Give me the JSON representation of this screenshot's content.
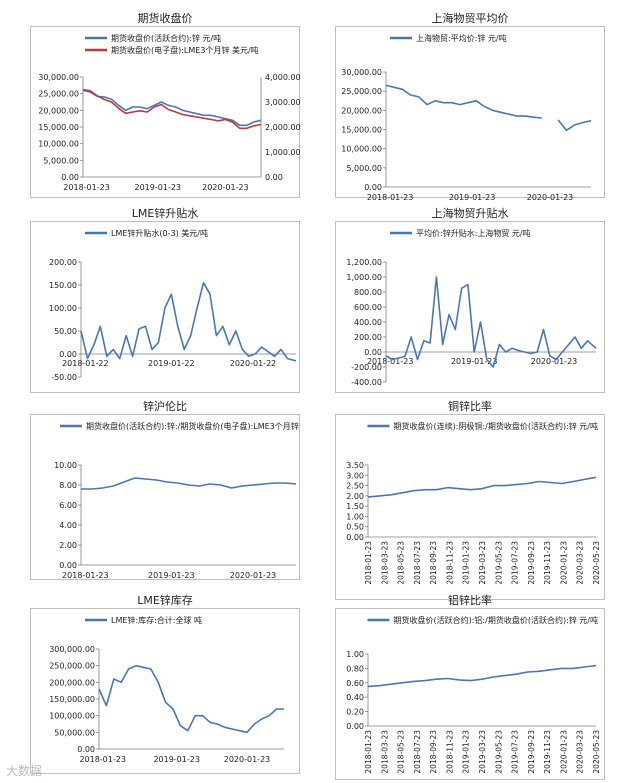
{
  "watermark": "大数据",
  "charts": [
    {
      "id": "c1",
      "title": "期货收盘价",
      "type": "line",
      "legend": [
        "期货收盘价(活跃合约):锌  元/吨",
        "期货收盘价(电子盘):LME3个月锌  美元/吨"
      ],
      "series_colors": [
        "#4a77b4",
        "#c0393b"
      ],
      "yticks": [
        "30,000.00",
        "25,000.00",
        "20,000.00",
        "15,000.00",
        "10,000.00",
        "5,000.00",
        "0.00"
      ],
      "yticks_right": [
        "4,000.00",
        "3,000.00",
        "2,000.00",
        "1,000.00",
        "0.00"
      ],
      "xticks": [
        "2018-01-23",
        "2019-01-23",
        "2020-01-23"
      ],
      "ylim": [
        0,
        30000
      ],
      "ylim_right": [
        0,
        4000
      ]
    },
    {
      "id": "c2",
      "title": "上海物贸平均价",
      "type": "line",
      "legend": [
        "上海物贸:平均价:锌  元/吨"
      ],
      "series_colors": [
        "#4a77b4"
      ],
      "yticks": [
        "30,000.00",
        "25,000.00",
        "20,000.00",
        "15,000.00",
        "10,000.00",
        "5,000.00",
        "0.00"
      ],
      "xticks": [
        "2018-01-23",
        "2019-01-23",
        "2020-01-23"
      ],
      "ylim": [
        0,
        30000
      ]
    },
    {
      "id": "c3",
      "title": "LME锌升贴水",
      "type": "line",
      "legend": [
        "LME锌升贴水(0-3)  美元/吨"
      ],
      "series_colors": [
        "#4a77b4"
      ],
      "yticks": [
        "200.00",
        "150.00",
        "100.00",
        "50.00",
        "0.00",
        "-50.00"
      ],
      "xticks": [
        "2018-01-22",
        "2019-01-22",
        "2020-01-22"
      ],
      "ylim": [
        -50,
        200
      ]
    },
    {
      "id": "c4",
      "title": "上海物贸升贴水",
      "type": "line",
      "legend": [
        "平均价:锌升贴水:上海物贸  元/吨"
      ],
      "series_colors": [
        "#4a77b4"
      ],
      "yticks": [
        "1,200.00",
        "1,000.00",
        "800.00",
        "600.00",
        "400.00",
        "200.00",
        "0.00",
        "-200.00",
        "-400.00"
      ],
      "xticks": [
        "2018-01-23",
        "2019-01-23",
        "2020-01-23"
      ],
      "ylim": [
        -400,
        1200
      ]
    },
    {
      "id": "c5",
      "title": "锌沪伦比",
      "type": "line",
      "legend": [
        "期货收盘价(活跃合约):锌:/期货收盘价(电子盘):LME3个月锌"
      ],
      "series_colors": [
        "#4a77b4"
      ],
      "yticks": [
        "10.00",
        "8.00",
        "6.00",
        "4.00",
        "2.00",
        "0.00"
      ],
      "xticks": [
        "2018-01-23",
        "2019-01-23",
        "2020-01-23"
      ],
      "ylim": [
        0,
        10
      ]
    },
    {
      "id": "c6",
      "title": "铜锌比率",
      "type": "line",
      "legend": [
        "期货收盘价(连续):阴极铜:/期货收盘价(活跃合约):锌  元/吨"
      ],
      "series_colors": [
        "#4a77b4"
      ],
      "yticks": [
        "3.50",
        "3.00",
        "2.50",
        "2.00",
        "1.50",
        "1.00",
        "0.50",
        "0.00"
      ],
      "xticks": [
        "2018-01-23",
        "2018-03-23",
        "2018-05-23",
        "2018-07-23",
        "2018-09-23",
        "2018-11-23",
        "2019-01-23",
        "2019-03-23",
        "2019-05-23",
        "2019-07-23",
        "2019-09-23",
        "2019-11-23",
        "2020-01-23",
        "2020-03-23",
        "2020-05-23"
      ],
      "ylim": [
        0,
        3.5
      ]
    },
    {
      "id": "c7",
      "title": "LME锌库存",
      "type": "line",
      "legend": [
        "LME锌:库存:合计:全球  吨"
      ],
      "series_colors": [
        "#4a77b4"
      ],
      "yticks": [
        "300,000.00",
        "250,000.00",
        "200,000.00",
        "150,000.00",
        "100,000.00",
        "50,000.00",
        "0.00"
      ],
      "xticks": [
        "2018-01-23",
        "2019-01-23",
        "2020-01-23"
      ],
      "ylim": [
        0,
        300000
      ]
    },
    {
      "id": "c8",
      "title": "铝锌比率",
      "type": "line",
      "legend": [
        "期货收盘价(活跃合约):铝:/期货收盘价(活跃合约):锌  元/吨"
      ],
      "series_colors": [
        "#4a77b4"
      ],
      "yticks": [
        "1.00",
        "0.80",
        "0.60",
        "0.40",
        "0.20",
        "0.00"
      ],
      "xticks": [
        "2018-01-23",
        "2018-03-23",
        "2018-05-23",
        "2018-07-23",
        "2018-09-23",
        "2018-11-23",
        "2019-01-23",
        "2019-03-23",
        "2019-05-23",
        "2019-07-23",
        "2019-09-23",
        "2019-11-23",
        "2020-01-23",
        "2020-03-23",
        "2020-05-23"
      ],
      "ylim": [
        0,
        1
      ]
    }
  ],
  "chart_data": [
    {
      "type": "line",
      "title": "期货收盘价",
      "xlabel": "",
      "ylabel": "",
      "series": [
        {
          "name": "期货收盘价(活跃合约):锌  元/吨",
          "axis": "left",
          "x": [
            0,
            0.04,
            0.08,
            0.12,
            0.16,
            0.2,
            0.24,
            0.28,
            0.32,
            0.36,
            0.4,
            0.44,
            0.48,
            0.52,
            0.56,
            0.6,
            0.64,
            0.68,
            0.72,
            0.76,
            0.8,
            0.84,
            0.88,
            0.92,
            0.96,
            1.0
          ],
          "values": [
            26000,
            25500,
            24200,
            24000,
            23300,
            21500,
            20000,
            21000,
            21000,
            20500,
            21500,
            22500,
            21500,
            21000,
            20000,
            19500,
            19000,
            18500,
            18500,
            18000,
            17500,
            17000,
            15500,
            15500,
            16500,
            17000
          ]
        },
        {
          "name": "期货收盘价(电子盘):LME3个月锌  美元/吨",
          "axis": "right",
          "x": [
            0,
            0.04,
            0.08,
            0.12,
            0.16,
            0.2,
            0.24,
            0.28,
            0.32,
            0.36,
            0.4,
            0.44,
            0.48,
            0.52,
            0.56,
            0.6,
            0.64,
            0.68,
            0.72,
            0.76,
            0.8,
            0.84,
            0.88,
            0.92,
            0.96,
            1.0
          ],
          "values": [
            3500,
            3450,
            3250,
            3100,
            3000,
            2750,
            2550,
            2600,
            2650,
            2600,
            2800,
            2900,
            2700,
            2600,
            2500,
            2450,
            2400,
            2350,
            2300,
            2250,
            2300,
            2200,
            1950,
            1950,
            2050,
            2100
          ]
        }
      ]
    },
    {
      "type": "line",
      "title": "上海物贸平均价",
      "series": [
        {
          "name": "上海物贸:平均价:锌  元/吨",
          "x": [
            0,
            0.04,
            0.08,
            0.12,
            0.16,
            0.2,
            0.24,
            0.28,
            0.32,
            0.36,
            0.4,
            0.44,
            0.48,
            0.52,
            0.56,
            0.6,
            0.64,
            0.68,
            0.72,
            0.76,
            0.8,
            0.84,
            0.88,
            0.92,
            0.96,
            1.0
          ],
          "values": [
            26500,
            26000,
            25500,
            24000,
            23500,
            21500,
            22500,
            22000,
            22000,
            21500,
            22000,
            22500,
            21000,
            20000,
            19500,
            19000,
            18500,
            18500,
            18200,
            18000,
            null,
            17500,
            14800,
            16200,
            16800,
            17300
          ]
        }
      ]
    },
    {
      "type": "line",
      "title": "LME锌升贴水",
      "series": [
        {
          "name": "LME锌升贴水(0-3)  美元/吨",
          "x": [
            0,
            0.03,
            0.06,
            0.09,
            0.12,
            0.15,
            0.18,
            0.21,
            0.24,
            0.27,
            0.3,
            0.33,
            0.36,
            0.39,
            0.42,
            0.45,
            0.48,
            0.51,
            0.54,
            0.57,
            0.6,
            0.63,
            0.66,
            0.69,
            0.72,
            0.75,
            0.78,
            0.81,
            0.84,
            0.87,
            0.9,
            0.93,
            0.96,
            1.0
          ],
          "values": [
            50,
            -10,
            20,
            60,
            -5,
            10,
            -10,
            40,
            -5,
            55,
            60,
            10,
            25,
            100,
            130,
            60,
            10,
            40,
            100,
            155,
            130,
            40,
            60,
            20,
            50,
            10,
            -5,
            0,
            15,
            5,
            -5,
            10,
            -10,
            -15
          ]
        }
      ]
    },
    {
      "type": "line",
      "title": "上海物贸升贴水",
      "series": [
        {
          "name": "平均价:锌升贴水:上海物贸  元/吨",
          "x": [
            0,
            0.03,
            0.06,
            0.09,
            0.12,
            0.15,
            0.18,
            0.21,
            0.24,
            0.27,
            0.3,
            0.33,
            0.36,
            0.39,
            0.42,
            0.45,
            0.48,
            0.51,
            0.54,
            0.57,
            0.6,
            0.63,
            0.66,
            0.69,
            0.72,
            0.75,
            0.78,
            0.81,
            0.84,
            0.87,
            0.9,
            0.93,
            0.96,
            1.0
          ],
          "values": [
            -50,
            -100,
            -80,
            -60,
            200,
            -100,
            150,
            120,
            1000,
            100,
            500,
            300,
            850,
            900,
            0,
            400,
            -100,
            -200,
            100,
            0,
            50,
            20,
            0,
            -20,
            0,
            300,
            -50,
            -100,
            0,
            100,
            200,
            50,
            150,
            50
          ]
        }
      ]
    },
    {
      "type": "line",
      "title": "锌沪伦比",
      "series": [
        {
          "name": "期货收盘价(活跃合约):锌:/期货收盘价(电子盘):LME3个月锌",
          "x": [
            0,
            0.05,
            0.1,
            0.15,
            0.2,
            0.25,
            0.3,
            0.35,
            0.4,
            0.45,
            0.5,
            0.55,
            0.6,
            0.65,
            0.7,
            0.75,
            0.8,
            0.85,
            0.9,
            0.95,
            1.0
          ],
          "values": [
            7.6,
            7.6,
            7.7,
            7.9,
            8.3,
            8.7,
            8.6,
            8.5,
            8.3,
            8.2,
            8.0,
            7.9,
            8.1,
            8.0,
            7.7,
            7.9,
            8.0,
            8.1,
            8.2,
            8.2,
            8.1
          ]
        }
      ]
    },
    {
      "type": "line",
      "title": "铜锌比率",
      "series": [
        {
          "name": "期货收盘价(连续):阴极铜:/期货收盘价(活跃合约):锌  元/吨",
          "x": [
            0,
            0.05,
            0.1,
            0.15,
            0.2,
            0.25,
            0.3,
            0.35,
            0.4,
            0.45,
            0.5,
            0.55,
            0.6,
            0.65,
            0.7,
            0.75,
            0.8,
            0.85,
            0.9,
            0.95,
            1.0
          ],
          "values": [
            1.95,
            2.0,
            2.05,
            2.15,
            2.25,
            2.3,
            2.3,
            2.4,
            2.35,
            2.3,
            2.35,
            2.5,
            2.5,
            2.55,
            2.6,
            2.7,
            2.65,
            2.6,
            2.7,
            2.8,
            2.9
          ]
        }
      ]
    },
    {
      "type": "line",
      "title": "LME锌库存",
      "series": [
        {
          "name": "LME锌:库存:合计:全球  吨",
          "x": [
            0,
            0.04,
            0.08,
            0.12,
            0.16,
            0.2,
            0.24,
            0.28,
            0.32,
            0.36,
            0.4,
            0.44,
            0.48,
            0.52,
            0.56,
            0.6,
            0.64,
            0.68,
            0.72,
            0.76,
            0.8,
            0.84,
            0.88,
            0.92,
            0.96,
            1.0
          ],
          "values": [
            180000,
            130000,
            210000,
            200000,
            240000,
            250000,
            245000,
            240000,
            200000,
            140000,
            120000,
            70000,
            55000,
            100000,
            100000,
            80000,
            75000,
            65000,
            60000,
            55000,
            50000,
            75000,
            90000,
            100000,
            120000,
            120000
          ]
        }
      ]
    },
    {
      "type": "line",
      "title": "铝锌比率",
      "series": [
        {
          "name": "期货收盘价(活跃合约):铝:/期货收盘价(活跃合约):锌  元/吨",
          "x": [
            0,
            0.05,
            0.1,
            0.15,
            0.2,
            0.25,
            0.3,
            0.35,
            0.4,
            0.45,
            0.5,
            0.55,
            0.6,
            0.65,
            0.7,
            0.75,
            0.8,
            0.85,
            0.9,
            0.95,
            1.0
          ],
          "values": [
            0.55,
            0.56,
            0.58,
            0.6,
            0.62,
            0.63,
            0.65,
            0.66,
            0.64,
            0.63,
            0.65,
            0.68,
            0.7,
            0.72,
            0.75,
            0.76,
            0.78,
            0.8,
            0.8,
            0.82,
            0.84
          ]
        }
      ]
    }
  ]
}
